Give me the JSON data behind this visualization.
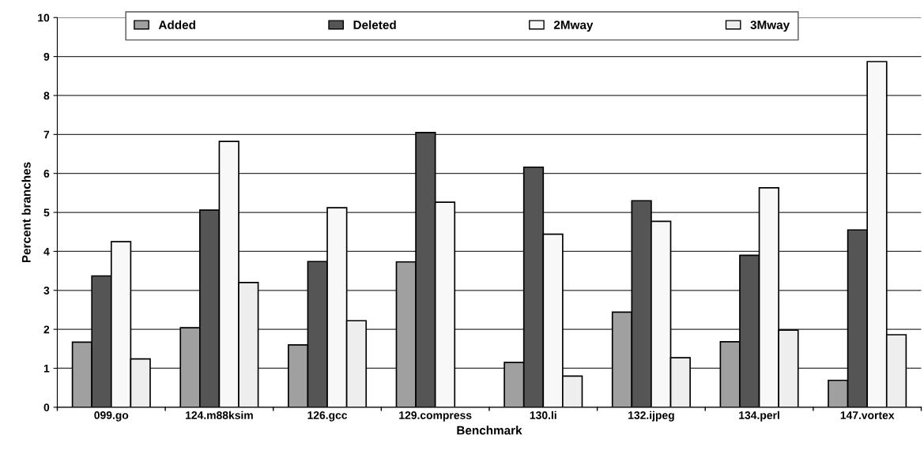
{
  "chart_data": {
    "type": "bar",
    "xlabel": "Benchmark",
    "ylabel": "Percent branches",
    "categories": [
      "099.go",
      "124.m88ksim",
      "126.gcc",
      "129.compress",
      "130.li",
      "132.ijpeg",
      "134.perl",
      "147.vortex"
    ],
    "series": [
      {
        "name": "Added",
        "color": "#a0a0a0",
        "values": [
          1.67,
          2.04,
          1.6,
          3.73,
          1.15,
          2.44,
          1.68,
          0.69
        ]
      },
      {
        "name": "Deleted",
        "color": "#555555",
        "values": [
          3.37,
          5.06,
          3.74,
          7.05,
          6.16,
          5.3,
          3.9,
          4.55
        ]
      },
      {
        "name": "2Mway",
        "color": "#f8f8f8",
        "values": [
          4.25,
          6.82,
          5.12,
          5.26,
          4.44,
          4.77,
          5.63,
          8.87
        ]
      },
      {
        "name": "3Mway",
        "color": "#eeeeee",
        "values": [
          1.24,
          3.2,
          2.22,
          null,
          0.8,
          1.27,
          1.98,
          1.86
        ]
      }
    ],
    "ylim": [
      0,
      10
    ],
    "yticks": [
      0,
      1,
      2,
      3,
      4,
      5,
      6,
      7,
      8,
      9,
      10
    ],
    "grid": "y",
    "legend": "top"
  }
}
